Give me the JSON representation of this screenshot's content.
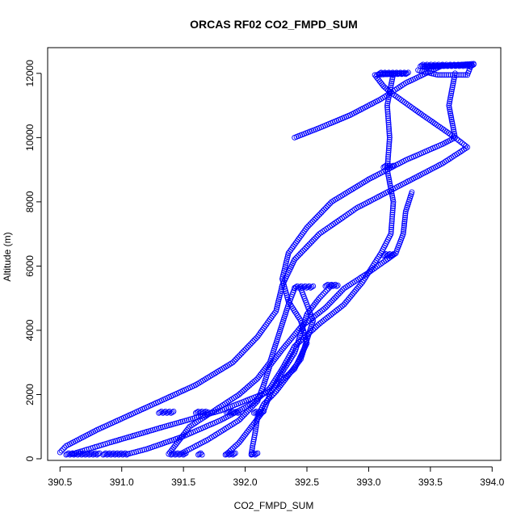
{
  "chart_data": {
    "type": "scatter",
    "title": "ORCAS RF02 CO2_FMPD_SUM",
    "xlabel": "CO2_FMPD_SUM",
    "ylabel": "Altitude (m)",
    "xlim": [
      390.4,
      394.07
    ],
    "ylim": [
      -50,
      12800
    ],
    "xticks": [
      {
        "v": 390.5,
        "label": "390.5"
      },
      {
        "v": 391.0,
        "label": "391.0"
      },
      {
        "v": 391.5,
        "label": "391.5"
      },
      {
        "v": 392.0,
        "label": "392.0"
      },
      {
        "v": 392.5,
        "label": "392.5"
      },
      {
        "v": 393.0,
        "label": "393.0"
      },
      {
        "v": 393.5,
        "label": "393.5"
      },
      {
        "v": 394.0,
        "label": "394.0"
      }
    ],
    "yticks": [
      {
        "v": 0,
        "label": "0"
      },
      {
        "v": 2000,
        "label": "2000"
      },
      {
        "v": 4000,
        "label": "4000"
      },
      {
        "v": 6000,
        "label": "6000"
      },
      {
        "v": 8000,
        "label": "8000"
      },
      {
        "v": 10000,
        "label": "10000"
      },
      {
        "v": 12000,
        "label": "12000"
      }
    ],
    "grid": false,
    "marker": "open-circle",
    "color": "#0000ff",
    "series": [
      {
        "values": [
          [
            393.85,
            12300
          ],
          [
            393.5,
            12200
          ],
          [
            393.44,
            12220
          ],
          [
            393.83,
            12260
          ],
          [
            393.8,
            11950
          ],
          [
            393.56,
            11950
          ],
          [
            393.4,
            12100
          ]
        ]
      },
      {
        "values": [
          [
            393.1,
            12000
          ],
          [
            393.3,
            12000
          ],
          [
            393.05,
            11950
          ],
          [
            393.08,
            11800
          ],
          [
            393.12,
            11600
          ],
          [
            393.18,
            11400
          ],
          [
            393.4,
            10800
          ],
          [
            393.55,
            10400
          ],
          [
            393.7,
            10000
          ],
          [
            393.8,
            9700
          ],
          [
            393.6,
            9200
          ],
          [
            393.2,
            8400
          ],
          [
            392.9,
            7800
          ],
          [
            392.6,
            7000
          ],
          [
            392.4,
            6200
          ],
          [
            392.3,
            5400
          ],
          [
            392.25,
            4600
          ],
          [
            392.1,
            3800
          ],
          [
            391.9,
            3000
          ],
          [
            391.6,
            2300
          ],
          [
            391.2,
            1600
          ],
          [
            390.8,
            900
          ],
          [
            390.55,
            400
          ],
          [
            390.5,
            200
          ]
        ]
      },
      {
        "values": [
          [
            393.7,
            12000
          ],
          [
            393.65,
            11000
          ],
          [
            393.7,
            10000
          ],
          [
            393.6,
            9800
          ],
          [
            393.3,
            9300
          ],
          [
            393.0,
            8700
          ],
          [
            392.7,
            8000
          ],
          [
            392.5,
            7200
          ],
          [
            392.35,
            6400
          ],
          [
            392.3,
            5600
          ],
          [
            392.35,
            4900
          ],
          [
            392.45,
            4300
          ],
          [
            392.5,
            3600
          ],
          [
            392.4,
            2800
          ],
          [
            392.2,
            2100
          ],
          [
            391.8,
            1500
          ],
          [
            391.3,
            950
          ],
          [
            390.9,
            500
          ],
          [
            390.6,
            150
          ]
        ]
      },
      {
        "values": [
          [
            393.2,
            12000
          ],
          [
            393.15,
            11000
          ],
          [
            393.17,
            10000
          ],
          [
            393.15,
            9000
          ],
          [
            393.2,
            8000
          ],
          [
            393.18,
            7000
          ],
          [
            393.1,
            6400
          ],
          [
            392.95,
            5500
          ],
          [
            392.8,
            4800
          ],
          [
            392.6,
            4200
          ],
          [
            392.4,
            3500
          ],
          [
            392.3,
            2800
          ],
          [
            392.2,
            2200
          ],
          [
            392.05,
            1700
          ],
          [
            391.8,
            1200
          ],
          [
            391.5,
            700
          ],
          [
            391.2,
            300
          ],
          [
            391.05,
            150
          ]
        ]
      },
      {
        "values": [
          [
            393.35,
            8300
          ],
          [
            393.3,
            7700
          ],
          [
            393.28,
            7000
          ],
          [
            393.22,
            6400
          ],
          [
            393.0,
            5800
          ],
          [
            392.8,
            5300
          ],
          [
            392.65,
            4700
          ],
          [
            392.45,
            4100
          ],
          [
            392.3,
            3400
          ],
          [
            392.2,
            2900
          ],
          [
            392.15,
            2300
          ],
          [
            392.1,
            1800
          ],
          [
            391.95,
            1200
          ],
          [
            391.7,
            600
          ],
          [
            391.5,
            200
          ]
        ]
      },
      {
        "values": [
          [
            392.7,
            5400
          ],
          [
            392.6,
            5000
          ],
          [
            392.5,
            4500
          ],
          [
            392.45,
            3900
          ],
          [
            392.4,
            3300
          ],
          [
            392.3,
            2700
          ],
          [
            392.2,
            2000
          ],
          [
            392.15,
            1500
          ],
          [
            392.05,
            1000
          ],
          [
            391.95,
            500
          ],
          [
            391.85,
            150
          ]
        ]
      },
      {
        "values": [
          [
            392.4,
            5300
          ],
          [
            392.35,
            4800
          ],
          [
            392.3,
            4200
          ],
          [
            392.25,
            3600
          ],
          [
            392.2,
            3000
          ],
          [
            392.1,
            2500
          ],
          [
            391.95,
            2000
          ],
          [
            391.75,
            1500
          ],
          [
            391.55,
            1000
          ],
          [
            391.45,
            500
          ],
          [
            391.38,
            150
          ]
        ]
      },
      {
        "values": [
          [
            392.45,
            5300
          ],
          [
            392.5,
            4800
          ],
          [
            392.55,
            4300
          ],
          [
            392.5,
            3700
          ],
          [
            392.45,
            3100
          ],
          [
            392.35,
            2600
          ],
          [
            392.25,
            2100
          ],
          [
            392.15,
            1700
          ],
          [
            392.1,
            1300
          ],
          [
            392.08,
            800
          ],
          [
            392.06,
            400
          ],
          [
            392.05,
            150
          ]
        ]
      },
      {
        "values": [
          [
            393.6,
            12250
          ],
          [
            393.3,
            11700
          ],
          [
            393.1,
            11200
          ],
          [
            392.85,
            10700
          ],
          [
            392.6,
            10300
          ],
          [
            392.4,
            10000
          ]
        ]
      }
    ],
    "clusters": [
      {
        "x": [
          393.08,
          393.32
        ],
        "y": 12000
      },
      {
        "x": [
          393.42,
          393.85
        ],
        "y": 12250
      },
      {
        "x": [
          392.4,
          392.55
        ],
        "y": 5350
      },
      {
        "x": [
          392.65,
          392.75
        ],
        "y": 5400
      },
      {
        "x": [
          393.12,
          393.2
        ],
        "y": 6350
      },
      {
        "x": [
          393.12,
          393.2
        ],
        "y": 9100
      },
      {
        "x": [
          390.55,
          390.82
        ],
        "y": 150
      },
      {
        "x": [
          390.85,
          391.05
        ],
        "y": 150
      },
      {
        "x": [
          391.4,
          391.52
        ],
        "y": 150
      },
      {
        "x": [
          391.62,
          391.65
        ],
        "y": 150
      },
      {
        "x": [
          391.84,
          391.92
        ],
        "y": 150
      },
      {
        "x": [
          392.05,
          392.1
        ],
        "y": 150
      },
      {
        "x": [
          391.3,
          391.42
        ],
        "y": 1450
      },
      {
        "x": [
          391.6,
          391.7
        ],
        "y": 1450
      },
      {
        "x": [
          391.85,
          391.95
        ],
        "y": 1450
      },
      {
        "x": [
          392.07,
          392.15
        ],
        "y": 1450
      }
    ]
  }
}
